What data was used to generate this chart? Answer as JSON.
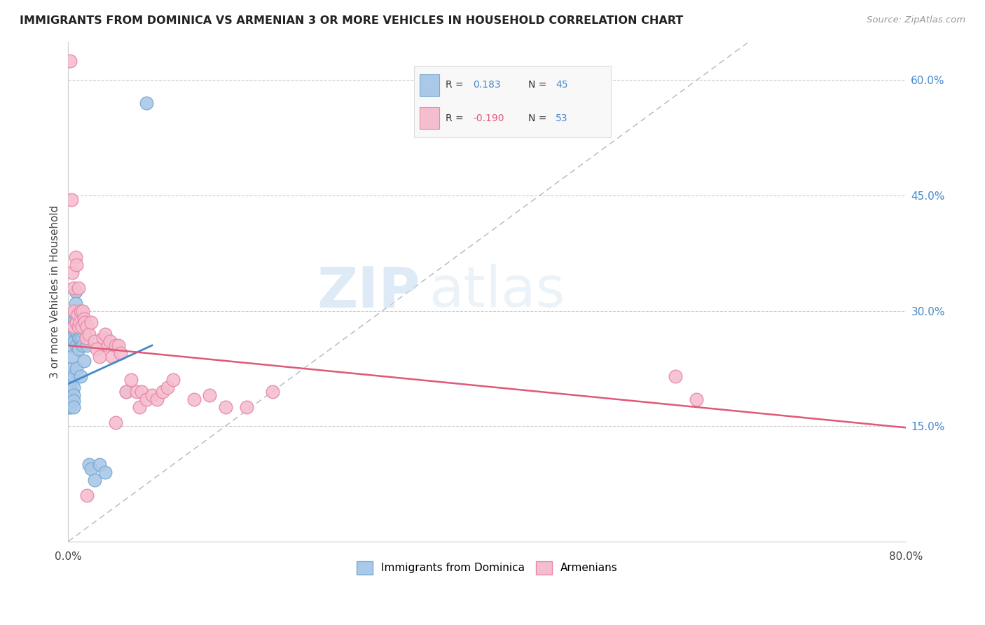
{
  "title": "IMMIGRANTS FROM DOMINICA VS ARMENIAN 3 OR MORE VEHICLES IN HOUSEHOLD CORRELATION CHART",
  "source": "Source: ZipAtlas.com",
  "ylabel": "3 or more Vehicles in Household",
  "xmin": 0.0,
  "xmax": 0.8,
  "ymin": 0.0,
  "ymax": 0.65,
  "xticks": [
    0.0,
    0.1,
    0.2,
    0.3,
    0.4,
    0.5,
    0.6,
    0.7,
    0.8
  ],
  "xtick_labels_show": [
    "0.0%",
    "",
    "",
    "",
    "",
    "",
    "",
    "",
    "80.0%"
  ],
  "yticks_right": [
    0.15,
    0.3,
    0.45,
    0.6
  ],
  "ytick_right_labels": [
    "15.0%",
    "30.0%",
    "45.0%",
    "60.0%"
  ],
  "blue_label": "Immigrants from Dominica",
  "pink_label": "Armenians",
  "R_blue": 0.183,
  "N_blue": 45,
  "R_pink": -0.19,
  "N_pink": 53,
  "blue_color": "#aac8e8",
  "blue_edge": "#7aaad0",
  "pink_color": "#f5bece",
  "pink_edge": "#e888a8",
  "blue_line_color": "#4488cc",
  "pink_line_color": "#e05878",
  "diag_line_color": "#b0b8c8",
  "watermark_zip": "ZIP",
  "watermark_atlas": "atlas",
  "blue_trend_x0": 0.0,
  "blue_trend_y0": 0.205,
  "blue_trend_x1": 0.08,
  "blue_trend_y1": 0.255,
  "pink_trend_x0": 0.0,
  "pink_trend_y0": 0.255,
  "pink_trend_x1": 0.8,
  "pink_trend_y1": 0.148,
  "blue_points_x": [
    0.001,
    0.001,
    0.001,
    0.002,
    0.002,
    0.002,
    0.002,
    0.003,
    0.003,
    0.003,
    0.003,
    0.004,
    0.004,
    0.004,
    0.004,
    0.005,
    0.005,
    0.005,
    0.005,
    0.005,
    0.006,
    0.006,
    0.006,
    0.007,
    0.007,
    0.007,
    0.008,
    0.008,
    0.009,
    0.01,
    0.01,
    0.011,
    0.012,
    0.013,
    0.014,
    0.015,
    0.016,
    0.018,
    0.02,
    0.022,
    0.025,
    0.03,
    0.035,
    0.055,
    0.075
  ],
  "blue_points_y": [
    0.19,
    0.183,
    0.175,
    0.2,
    0.195,
    0.185,
    0.175,
    0.275,
    0.255,
    0.225,
    0.21,
    0.28,
    0.265,
    0.24,
    0.185,
    0.215,
    0.2,
    0.19,
    0.183,
    0.175,
    0.29,
    0.275,
    0.26,
    0.325,
    0.31,
    0.295,
    0.255,
    0.225,
    0.27,
    0.265,
    0.25,
    0.265,
    0.215,
    0.265,
    0.255,
    0.235,
    0.27,
    0.255,
    0.1,
    0.095,
    0.08,
    0.1,
    0.09,
    0.195,
    0.57
  ],
  "pink_points_x": [
    0.002,
    0.003,
    0.004,
    0.005,
    0.005,
    0.006,
    0.007,
    0.008,
    0.008,
    0.009,
    0.01,
    0.01,
    0.011,
    0.012,
    0.013,
    0.014,
    0.015,
    0.016,
    0.017,
    0.018,
    0.02,
    0.022,
    0.025,
    0.027,
    0.03,
    0.033,
    0.035,
    0.038,
    0.04,
    0.042,
    0.045,
    0.048,
    0.05,
    0.055,
    0.06,
    0.065,
    0.068,
    0.07,
    0.075,
    0.08,
    0.085,
    0.09,
    0.095,
    0.1,
    0.12,
    0.135,
    0.15,
    0.17,
    0.195,
    0.58,
    0.6,
    0.018,
    0.045
  ],
  "pink_points_y": [
    0.625,
    0.445,
    0.35,
    0.33,
    0.28,
    0.3,
    0.37,
    0.36,
    0.285,
    0.295,
    0.33,
    0.28,
    0.285,
    0.3,
    0.28,
    0.3,
    0.29,
    0.285,
    0.265,
    0.28,
    0.27,
    0.285,
    0.26,
    0.25,
    0.24,
    0.265,
    0.27,
    0.255,
    0.26,
    0.24,
    0.255,
    0.255,
    0.245,
    0.195,
    0.21,
    0.195,
    0.175,
    0.195,
    0.185,
    0.19,
    0.185,
    0.195,
    0.2,
    0.21,
    0.185,
    0.19,
    0.175,
    0.175,
    0.195,
    0.215,
    0.185,
    0.06,
    0.155
  ]
}
